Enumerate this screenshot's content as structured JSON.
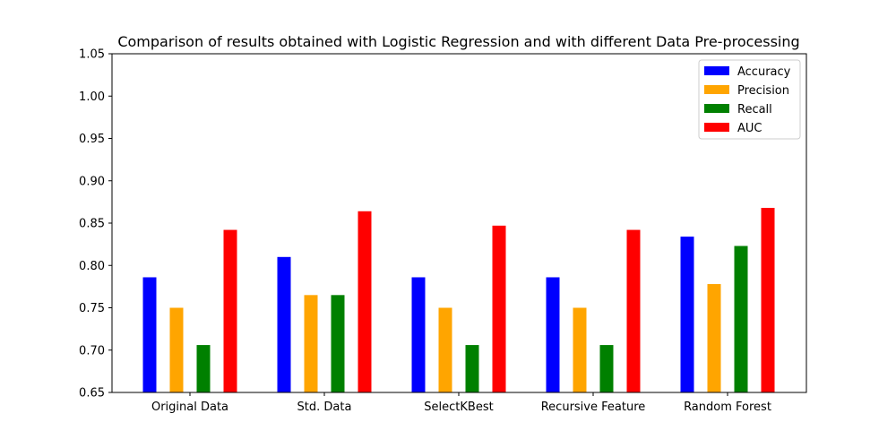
{
  "chart_data": {
    "type": "bar",
    "title": "Comparison of results obtained with Logistic Regression and with different Data Pre-processing",
    "xlabel": "",
    "ylabel": "",
    "categories": [
      "Original Data",
      "Std. Data",
      "SelectKBest",
      "Recursive Feature",
      "Random Forest"
    ],
    "ylim": [
      0.65,
      1.05
    ],
    "yticks": [
      "0.65",
      "0.70",
      "0.75",
      "0.80",
      "0.85",
      "0.90",
      "0.95",
      "1.00",
      "1.05"
    ],
    "grid": false,
    "legend_position": "top-right",
    "series": [
      {
        "name": "Accuracy",
        "color": "#0000ff",
        "values": [
          0.786,
          0.81,
          0.786,
          0.786,
          0.834
        ]
      },
      {
        "name": "Precision",
        "color": "#ffa500",
        "values": [
          0.75,
          0.765,
          0.75,
          0.75,
          0.778
        ]
      },
      {
        "name": "Recall",
        "color": "#008000",
        "values": [
          0.706,
          0.765,
          0.706,
          0.706,
          0.823
        ]
      },
      {
        "name": "AUC",
        "color": "#ff0000",
        "values": [
          0.842,
          0.864,
          0.847,
          0.842,
          0.868
        ]
      }
    ]
  }
}
